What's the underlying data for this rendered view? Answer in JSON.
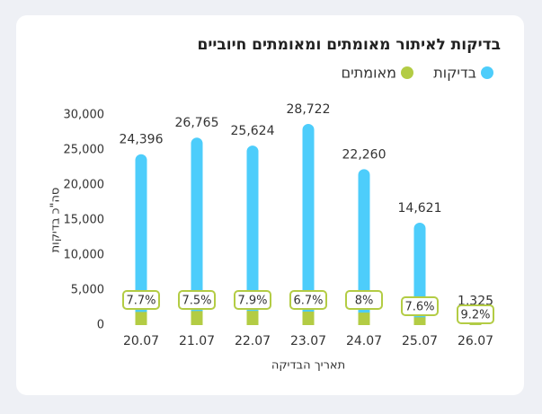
{
  "chart_data": {
    "type": "bar",
    "title": "בדיקות לאיתור מאומתים ומאומתים חיוביים",
    "x_label": "תאריך הבדיקה",
    "y_label": "סה\"כ בדיקות",
    "categories": [
      "20.07",
      "21.07",
      "22.07",
      "23.07",
      "24.07",
      "25.07",
      "26.07"
    ],
    "series": [
      {
        "name": "בדיקות",
        "color": "#4dcdfb",
        "values": [
          24396,
          26765,
          25624,
          28722,
          22260,
          14621,
          1325
        ],
        "value_labels": [
          "24,396",
          "26,765",
          "25,624",
          "28,722",
          "22,260",
          "14,621",
          "1,325"
        ]
      },
      {
        "name": "מאומתים",
        "color": "#b3cc44",
        "values": [
          1878,
          2007,
          2024,
          1924,
          1781,
          1111,
          122
        ]
      }
    ],
    "positive_rate": {
      "values": [
        7.7,
        7.5,
        7.9,
        6.7,
        8,
        7.6,
        9.2
      ],
      "value_labels": [
        "7.7%",
        "7.5%",
        "7.9%",
        "6.7%",
        "8%",
        "7.6%",
        "9.2%"
      ]
    },
    "ylim": [
      0,
      30000
    ],
    "yticks": [
      0,
      {
        "value": 5000,
        "label": "5,000"
      },
      {
        "value": 10000,
        "label": "10,000"
      },
      {
        "value": 15000,
        "label": "15,000"
      },
      {
        "value": 20000,
        "label": "20,000"
      },
      {
        "value": 25000,
        "label": "25,000"
      },
      {
        "value": 30000,
        "label": "30,000"
      }
    ]
  }
}
